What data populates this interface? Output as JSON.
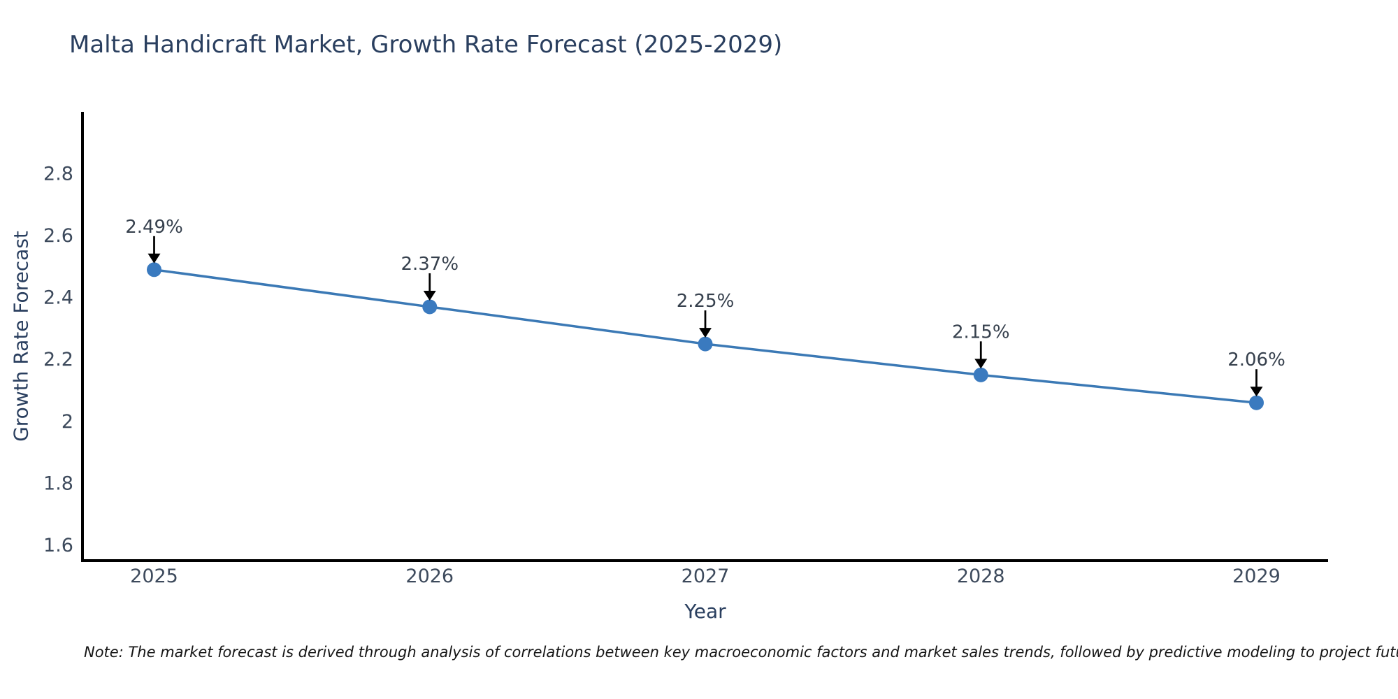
{
  "title": "Malta Handicraft Market, Growth Rate Forecast (2025-2029)",
  "note": "Note: The market forecast is derived through analysis of correlations between key macroeconomic factors and market sales trends, followed by predictive modeling to project future sales",
  "chart_data": {
    "type": "line",
    "title": "Malta Handicraft Market, Growth Rate Forecast (2025-2029)",
    "xlabel": "Year",
    "ylabel": "Growth Rate Forecast",
    "x": [
      2025,
      2026,
      2027,
      2028,
      2029
    ],
    "values": [
      2.49,
      2.37,
      2.25,
      2.15,
      2.06
    ],
    "series_name": "Growth Rate Forecast (%)",
    "point_labels": [
      "2.49%",
      "2.37%",
      "2.25%",
      "2.15%",
      "2.06%"
    ],
    "x_tick_labels": [
      "2025",
      "2026",
      "2027",
      "2028",
      "2029"
    ],
    "y_ticks": [
      1.6,
      1.8,
      2.0,
      2.2,
      2.4,
      2.6,
      2.8
    ],
    "y_tick_labels": [
      "1.6",
      "1.8",
      "2",
      "2.2",
      "2.4",
      "2.6",
      "2.8"
    ],
    "xlim": [
      2024.74,
      2029.26
    ],
    "ylim": [
      1.55,
      3.0
    ],
    "grid": false,
    "legend": false,
    "annotations_have_arrows": true,
    "colors": {
      "line": "#3b79b5",
      "marker": "#3a7abf",
      "axis": "#000000",
      "tick_label": "#3d4a5c",
      "annotation_text": "#36404d",
      "arrow": "#000000",
      "title": "#2a3f5f",
      "background": "#ffffff"
    }
  }
}
